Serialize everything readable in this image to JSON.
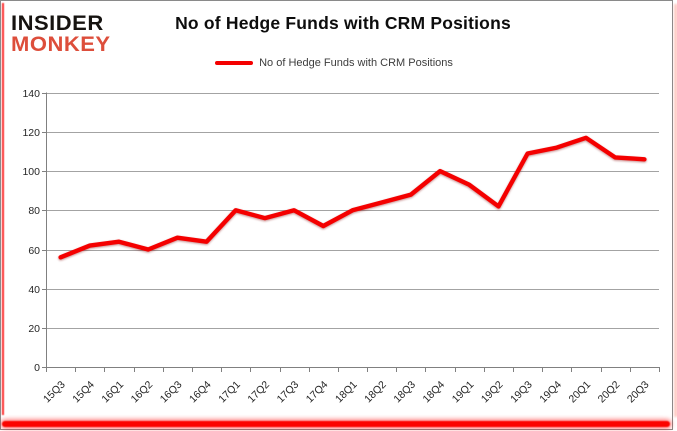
{
  "logo": {
    "line1": "INSIDER",
    "line2": "MONKEY"
  },
  "header": {
    "title": "No of Hedge Funds with CRM Positions"
  },
  "legend": {
    "label": "No of Hedge Funds with CRM Positions"
  },
  "colors": {
    "series_red": "#f40000",
    "logo_black": "#161310",
    "logo_red": "#dd4e3b",
    "gridline_gray": "#a3a3a3",
    "axis_gray": "#808080",
    "tick_text": "#262626",
    "frame_red": "#fb0400"
  },
  "chart_data": {
    "type": "line",
    "title": "No of Hedge Funds with CRM Positions",
    "categories": [
      "15Q3",
      "15Q4",
      "16Q1",
      "16Q2",
      "16Q3",
      "16Q4",
      "17Q1",
      "17Q2",
      "17Q3",
      "17Q4",
      "18Q1",
      "18Q2",
      "18Q3",
      "18Q4",
      "19Q1",
      "19Q2",
      "19Q3",
      "19Q4",
      "20Q1",
      "20Q2",
      "20Q3"
    ],
    "series": [
      {
        "name": "No of Hedge Funds with CRM Positions",
        "color": "#f40000",
        "values": [
          56,
          62,
          64,
          60,
          66,
          64,
          80,
          76,
          80,
          72,
          80,
          84,
          88,
          100,
          93,
          82,
          109,
          112,
          117,
          107,
          106
        ]
      }
    ],
    "xlabel": "",
    "ylabel": "",
    "ylim": [
      0,
      140
    ],
    "ytick_step": 20,
    "grid": true,
    "legend_position": "top"
  }
}
